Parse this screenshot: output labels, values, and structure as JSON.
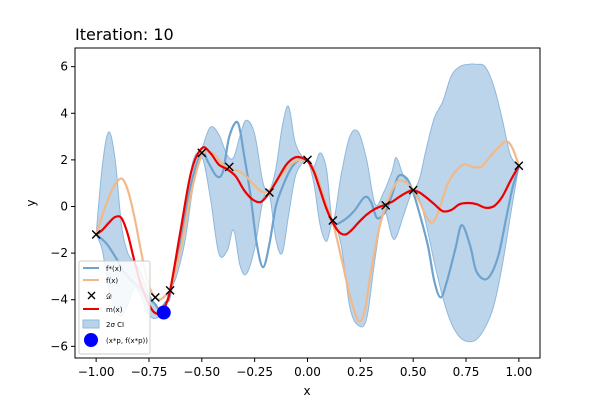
{
  "chart_data": {
    "type": "line",
    "title": "Iteration: 10",
    "xlabel": "x",
    "ylabel": "y",
    "xlim": [
      -1.1,
      1.1
    ],
    "ylim": [
      -6.5,
      6.8
    ],
    "xticks": [
      -1.0,
      -0.75,
      -0.5,
      -0.25,
      0.0,
      0.25,
      0.5,
      0.75,
      1.0
    ],
    "xtick_labels": [
      "−1.00",
      "−0.75",
      "−0.50",
      "−0.25",
      "0.00",
      "0.25",
      "0.50",
      "0.75",
      "1.00"
    ],
    "yticks": [
      -6,
      -4,
      -2,
      0,
      2,
      4,
      6
    ],
    "ytick_labels": [
      "−6",
      "−4",
      "−2",
      "0",
      "2",
      "4",
      "6"
    ],
    "grid": false,
    "legend_position": "lower-left",
    "colors": {
      "f_star": "#6ea3cf",
      "f": "#f1b98a",
      "mean": "#ee0000",
      "ci": "#b8d3e9",
      "ci_edge": "#8fb8dc",
      "data": "#000000",
      "best": "#0000ff"
    },
    "legend": [
      {
        "key": "f_star",
        "label": "f*(x)"
      },
      {
        "key": "f",
        "label": "f(x)"
      },
      {
        "key": "data",
        "label": "𝒟"
      },
      {
        "key": "mean",
        "label": "m(x)"
      },
      {
        "key": "ci",
        "label": "2σ CI"
      },
      {
        "key": "best",
        "label": "(x*p, f(x*p))"
      }
    ],
    "series": [
      {
        "key": "f_star",
        "x": [
          -1.0,
          -0.95,
          -0.9,
          -0.87,
          -0.83,
          -0.78,
          -0.74,
          -0.72,
          -0.7,
          -0.67,
          -0.65,
          -0.6,
          -0.55,
          -0.5,
          -0.47,
          -0.43,
          -0.4,
          -0.37,
          -0.33,
          -0.3,
          -0.27,
          -0.24,
          -0.21,
          -0.18,
          -0.15,
          -0.12,
          -0.08,
          -0.04,
          0.0,
          0.04,
          0.08,
          0.12,
          0.17,
          0.22,
          0.27,
          0.3,
          0.33,
          0.37,
          0.4,
          0.43,
          0.47,
          0.5,
          0.53,
          0.57,
          0.6,
          0.63,
          0.66,
          0.7,
          0.73,
          0.77,
          0.8,
          0.85,
          0.9,
          0.94,
          0.97,
          1.0
        ],
        "y": [
          -1.2,
          -1.6,
          -2.3,
          -2.8,
          -3.2,
          -3.6,
          -4.0,
          -4.2,
          -4.4,
          -4.1,
          -3.8,
          -1.5,
          1.0,
          2.3,
          1.9,
          1.3,
          1.5,
          3.0,
          3.6,
          2.2,
          0.5,
          -1.6,
          -2.6,
          -1.6,
          0.0,
          0.8,
          1.6,
          2.0,
          2.0,
          1.4,
          0.3,
          -0.7,
          -0.6,
          -0.2,
          0.4,
          0.2,
          -0.5,
          -0.2,
          0.5,
          1.3,
          1.2,
          0.6,
          -0.3,
          -1.7,
          -3.2,
          -3.9,
          -3.2,
          -1.8,
          -0.8,
          -1.7,
          -2.8,
          -3.1,
          -2.2,
          -0.5,
          0.8,
          1.7
        ]
      },
      {
        "key": "f",
        "x": [
          -1.0,
          -0.96,
          -0.92,
          -0.88,
          -0.85,
          -0.82,
          -0.79,
          -0.76,
          -0.73,
          -0.7,
          -0.67,
          -0.65,
          -0.6,
          -0.55,
          -0.5,
          -0.45,
          -0.4,
          -0.36,
          -0.32,
          -0.28,
          -0.24,
          -0.2,
          -0.16,
          -0.12,
          -0.08,
          -0.04,
          0.0,
          0.04,
          0.08,
          0.12,
          0.16,
          0.2,
          0.24,
          0.27,
          0.3,
          0.34,
          0.37,
          0.4,
          0.43,
          0.47,
          0.5,
          0.53,
          0.56,
          0.59,
          0.62,
          0.66,
          0.7,
          0.74,
          0.78,
          0.82,
          0.86,
          0.9,
          0.94,
          0.97,
          1.0
        ],
        "y": [
          -1.2,
          -0.1,
          0.8,
          1.2,
          0.7,
          -0.4,
          -1.8,
          -3.1,
          -3.8,
          -4.0,
          -3.8,
          -3.6,
          -1.8,
          0.6,
          2.2,
          2.3,
          1.8,
          1.6,
          1.5,
          1.2,
          0.8,
          0.6,
          0.9,
          1.4,
          1.8,
          2.0,
          1.95,
          1.4,
          0.3,
          -0.7,
          -2.2,
          -3.8,
          -4.9,
          -4.5,
          -2.8,
          -0.9,
          0.0,
          0.7,
          1.1,
          1.0,
          0.7,
          0.2,
          -0.4,
          -0.7,
          -0.2,
          0.9,
          1.5,
          1.8,
          1.7,
          1.7,
          2.1,
          2.5,
          2.8,
          2.5,
          1.75
        ]
      },
      {
        "key": "mean",
        "x": [
          -1.0,
          -0.97,
          -0.94,
          -0.91,
          -0.88,
          -0.85,
          -0.82,
          -0.79,
          -0.76,
          -0.73,
          -0.7,
          -0.68,
          -0.65,
          -0.6,
          -0.55,
          -0.5,
          -0.46,
          -0.42,
          -0.38,
          -0.34,
          -0.3,
          -0.26,
          -0.22,
          -0.18,
          -0.14,
          -0.1,
          -0.06,
          -0.03,
          0.0,
          0.03,
          0.06,
          0.09,
          0.12,
          0.15,
          0.18,
          0.21,
          0.24,
          0.28,
          0.32,
          0.36,
          0.4,
          0.44,
          0.48,
          0.5,
          0.53,
          0.56,
          0.6,
          0.64,
          0.68,
          0.72,
          0.76,
          0.8,
          0.84,
          0.88,
          0.92,
          0.96,
          1.0
        ],
        "y": [
          -1.2,
          -1.0,
          -0.7,
          -0.45,
          -0.5,
          -1.2,
          -2.3,
          -3.3,
          -4.0,
          -4.5,
          -4.6,
          -4.4,
          -3.6,
          -1.0,
          1.5,
          2.5,
          2.3,
          1.8,
          1.6,
          1.3,
          0.7,
          0.3,
          0.2,
          0.6,
          1.2,
          1.8,
          2.1,
          2.1,
          1.95,
          1.5,
          0.7,
          -0.1,
          -0.7,
          -1.1,
          -1.2,
          -1.0,
          -0.7,
          -0.35,
          -0.1,
          0.05,
          0.2,
          0.45,
          0.65,
          0.7,
          0.6,
          0.4,
          0.1,
          -0.2,
          -0.15,
          0.1,
          0.15,
          0.1,
          -0.05,
          0.0,
          0.4,
          1.1,
          1.75
        ]
      }
    ],
    "ci": {
      "x": [
        -1.0,
        -0.97,
        -0.94,
        -0.91,
        -0.88,
        -0.85,
        -0.82,
        -0.79,
        -0.76,
        -0.73,
        -0.7,
        -0.67,
        -0.65,
        -0.62,
        -0.58,
        -0.54,
        -0.5,
        -0.46,
        -0.42,
        -0.38,
        -0.35,
        -0.32,
        -0.29,
        -0.25,
        -0.21,
        -0.18,
        -0.15,
        -0.12,
        -0.09,
        -0.06,
        -0.03,
        0.0,
        0.03,
        0.06,
        0.09,
        0.12,
        0.16,
        0.2,
        0.24,
        0.28,
        0.32,
        0.36,
        0.4,
        0.42,
        0.45,
        0.48,
        0.5,
        0.53,
        0.56,
        0.6,
        0.64,
        0.68,
        0.72,
        0.76,
        0.8,
        0.84,
        0.88,
        0.92,
        0.96,
        1.0
      ],
      "lower": [
        -1.2,
        -1.9,
        -3.6,
        -4.4,
        -4.7,
        -4.2,
        -3.5,
        -3.8,
        -4.5,
        -4.8,
        -4.7,
        -4.3,
        -3.6,
        -3.0,
        -1.5,
        0.9,
        2.1,
        0.4,
        -2.0,
        -1.9,
        -1.0,
        -2.5,
        -2.9,
        -1.8,
        0.3,
        0.5,
        -1.4,
        -2.0,
        -0.4,
        1.2,
        1.8,
        1.95,
        1.0,
        -0.8,
        -1.5,
        -0.7,
        -1.7,
        -4.3,
        -5.1,
        -4.8,
        -2.2,
        -0.2,
        -1.3,
        -1.3,
        -0.5,
        0.3,
        0.7,
        0.3,
        -0.7,
        -2.4,
        -3.9,
        -5.0,
        -5.6,
        -5.8,
        -5.7,
        -5.2,
        -4.3,
        -2.6,
        -0.4,
        1.75
      ],
      "upper": [
        -1.2,
        1.8,
        3.2,
        2.0,
        -0.8,
        -2.0,
        -2.4,
        -2.8,
        -3.5,
        -4.1,
        -4.4,
        -4.2,
        -3.6,
        -2.3,
        0.0,
        2.0,
        2.5,
        3.4,
        3.1,
        2.2,
        2.1,
        3.0,
        3.7,
        3.1,
        1.0,
        0.7,
        1.6,
        3.4,
        4.3,
        2.8,
        2.2,
        1.95,
        1.7,
        2.3,
        1.6,
        -0.6,
        1.4,
        3.0,
        3.2,
        2.0,
        0.1,
        0.6,
        1.5,
        2.1,
        1.4,
        0.9,
        0.7,
        1.2,
        2.4,
        3.8,
        4.5,
        5.6,
        6.0,
        6.1,
        6.1,
        6.0,
        5.2,
        3.8,
        2.2,
        1.75
      ]
    },
    "data_points": {
      "x": [
        -1.0,
        -0.72,
        -0.65,
        -0.5,
        -0.37,
        -0.18,
        0.0,
        0.12,
        0.37,
        0.5,
        1.0
      ],
      "y": [
        -1.2,
        -3.9,
        -3.6,
        2.3,
        1.7,
        0.6,
        2.0,
        -0.6,
        0.05,
        0.7,
        1.75
      ]
    },
    "best_point": {
      "x": -0.68,
      "y": -4.55
    }
  }
}
